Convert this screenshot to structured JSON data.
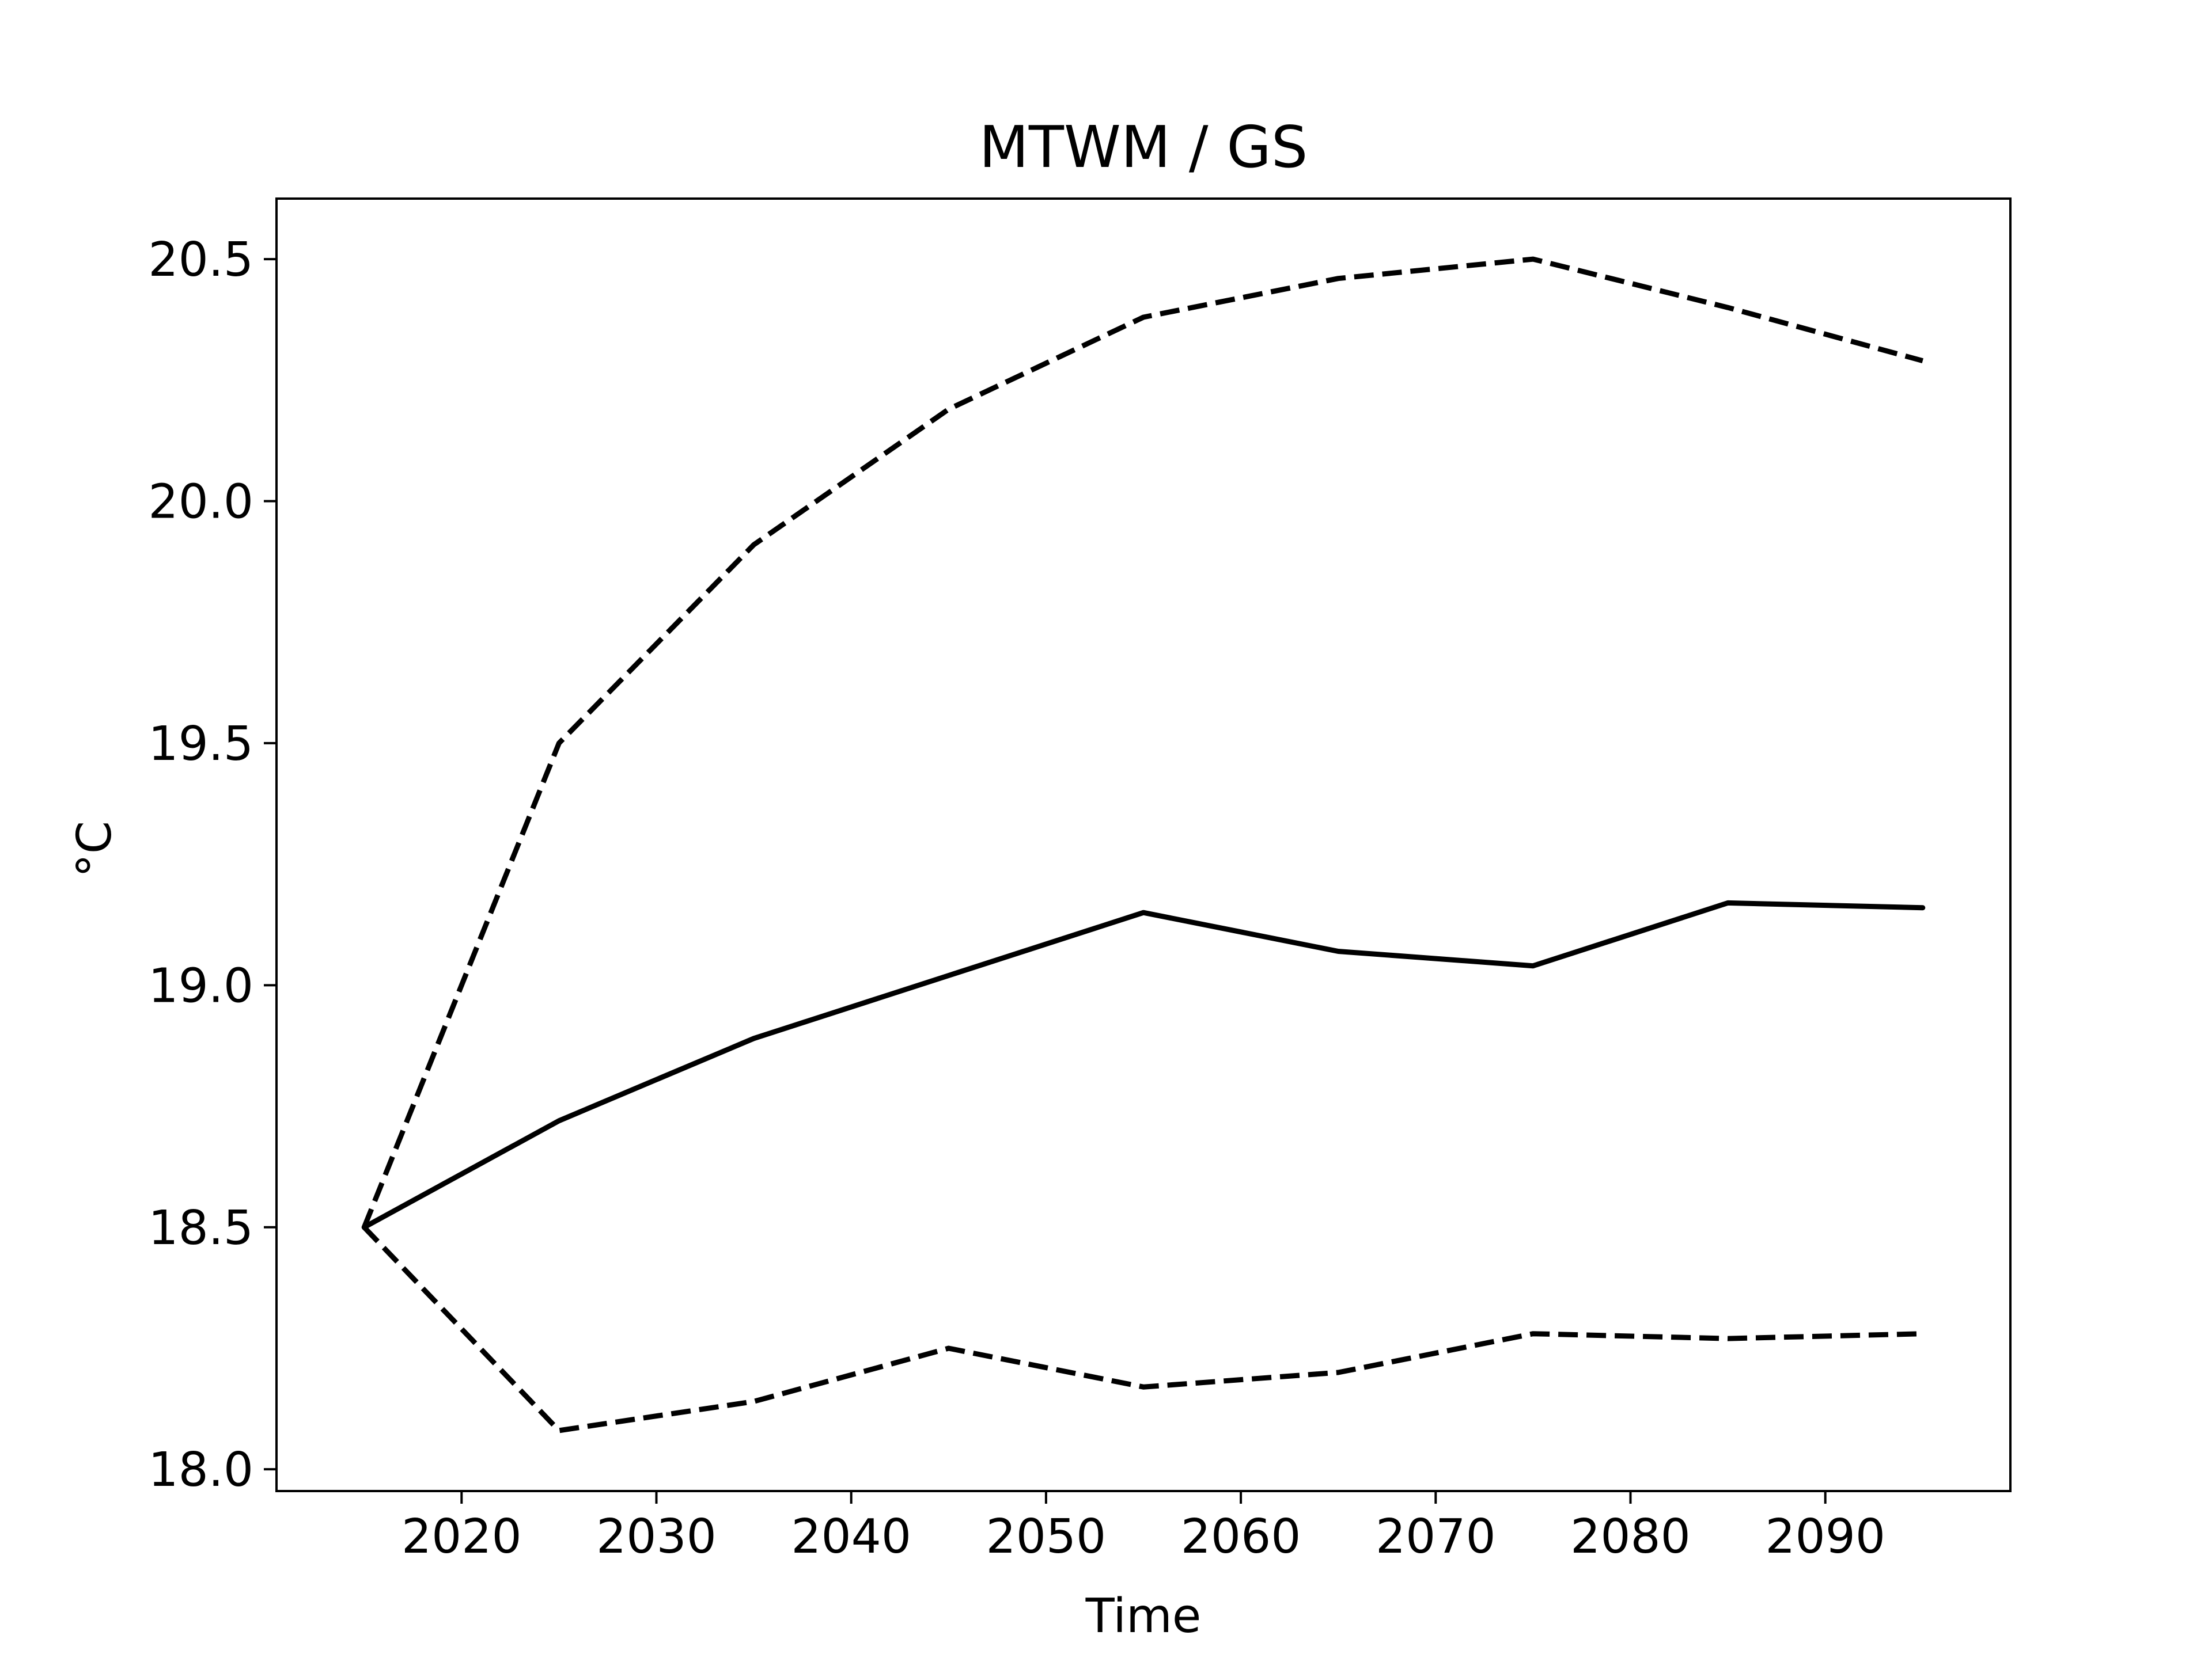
{
  "chart_data": {
    "type": "line",
    "title": "MTWM / GS",
    "xlabel": "Time",
    "ylabel": "°C",
    "xlim": [
      2010.5,
      2099.5
    ],
    "ylim": [
      17.955,
      20.625
    ],
    "grid": false,
    "legend": null,
    "x": [
      2015,
      2025,
      2035,
      2045,
      2055,
      2065,
      2075,
      2085,
      2095
    ],
    "xticks": [
      2020,
      2030,
      2040,
      2050,
      2060,
      2070,
      2080,
      2090
    ],
    "xtick_labels": [
      "2020",
      "2030",
      "2040",
      "2050",
      "2060",
      "2070",
      "2080",
      "2090"
    ],
    "yticks": [
      18.0,
      18.5,
      19.0,
      19.5,
      20.0,
      20.5
    ],
    "ytick_labels": [
      "18.0",
      "18.5",
      "19.0",
      "19.5",
      "20.0",
      "20.5"
    ],
    "series": [
      {
        "style": "solid",
        "color": "#000000",
        "values": [
          18.5,
          18.72,
          18.89,
          19.02,
          19.15,
          19.07,
          19.04,
          19.17,
          19.16
        ]
      },
      {
        "style": "dashed",
        "color": "#000000",
        "values": [
          18.5,
          19.5,
          19.91,
          20.19,
          20.38,
          20.46,
          20.5,
          20.4,
          20.29
        ]
      },
      {
        "style": "dashed",
        "color": "#000000",
        "values": [
          18.5,
          18.08,
          18.14,
          18.25,
          18.17,
          18.2,
          18.28,
          18.27,
          18.28
        ]
      }
    ]
  }
}
